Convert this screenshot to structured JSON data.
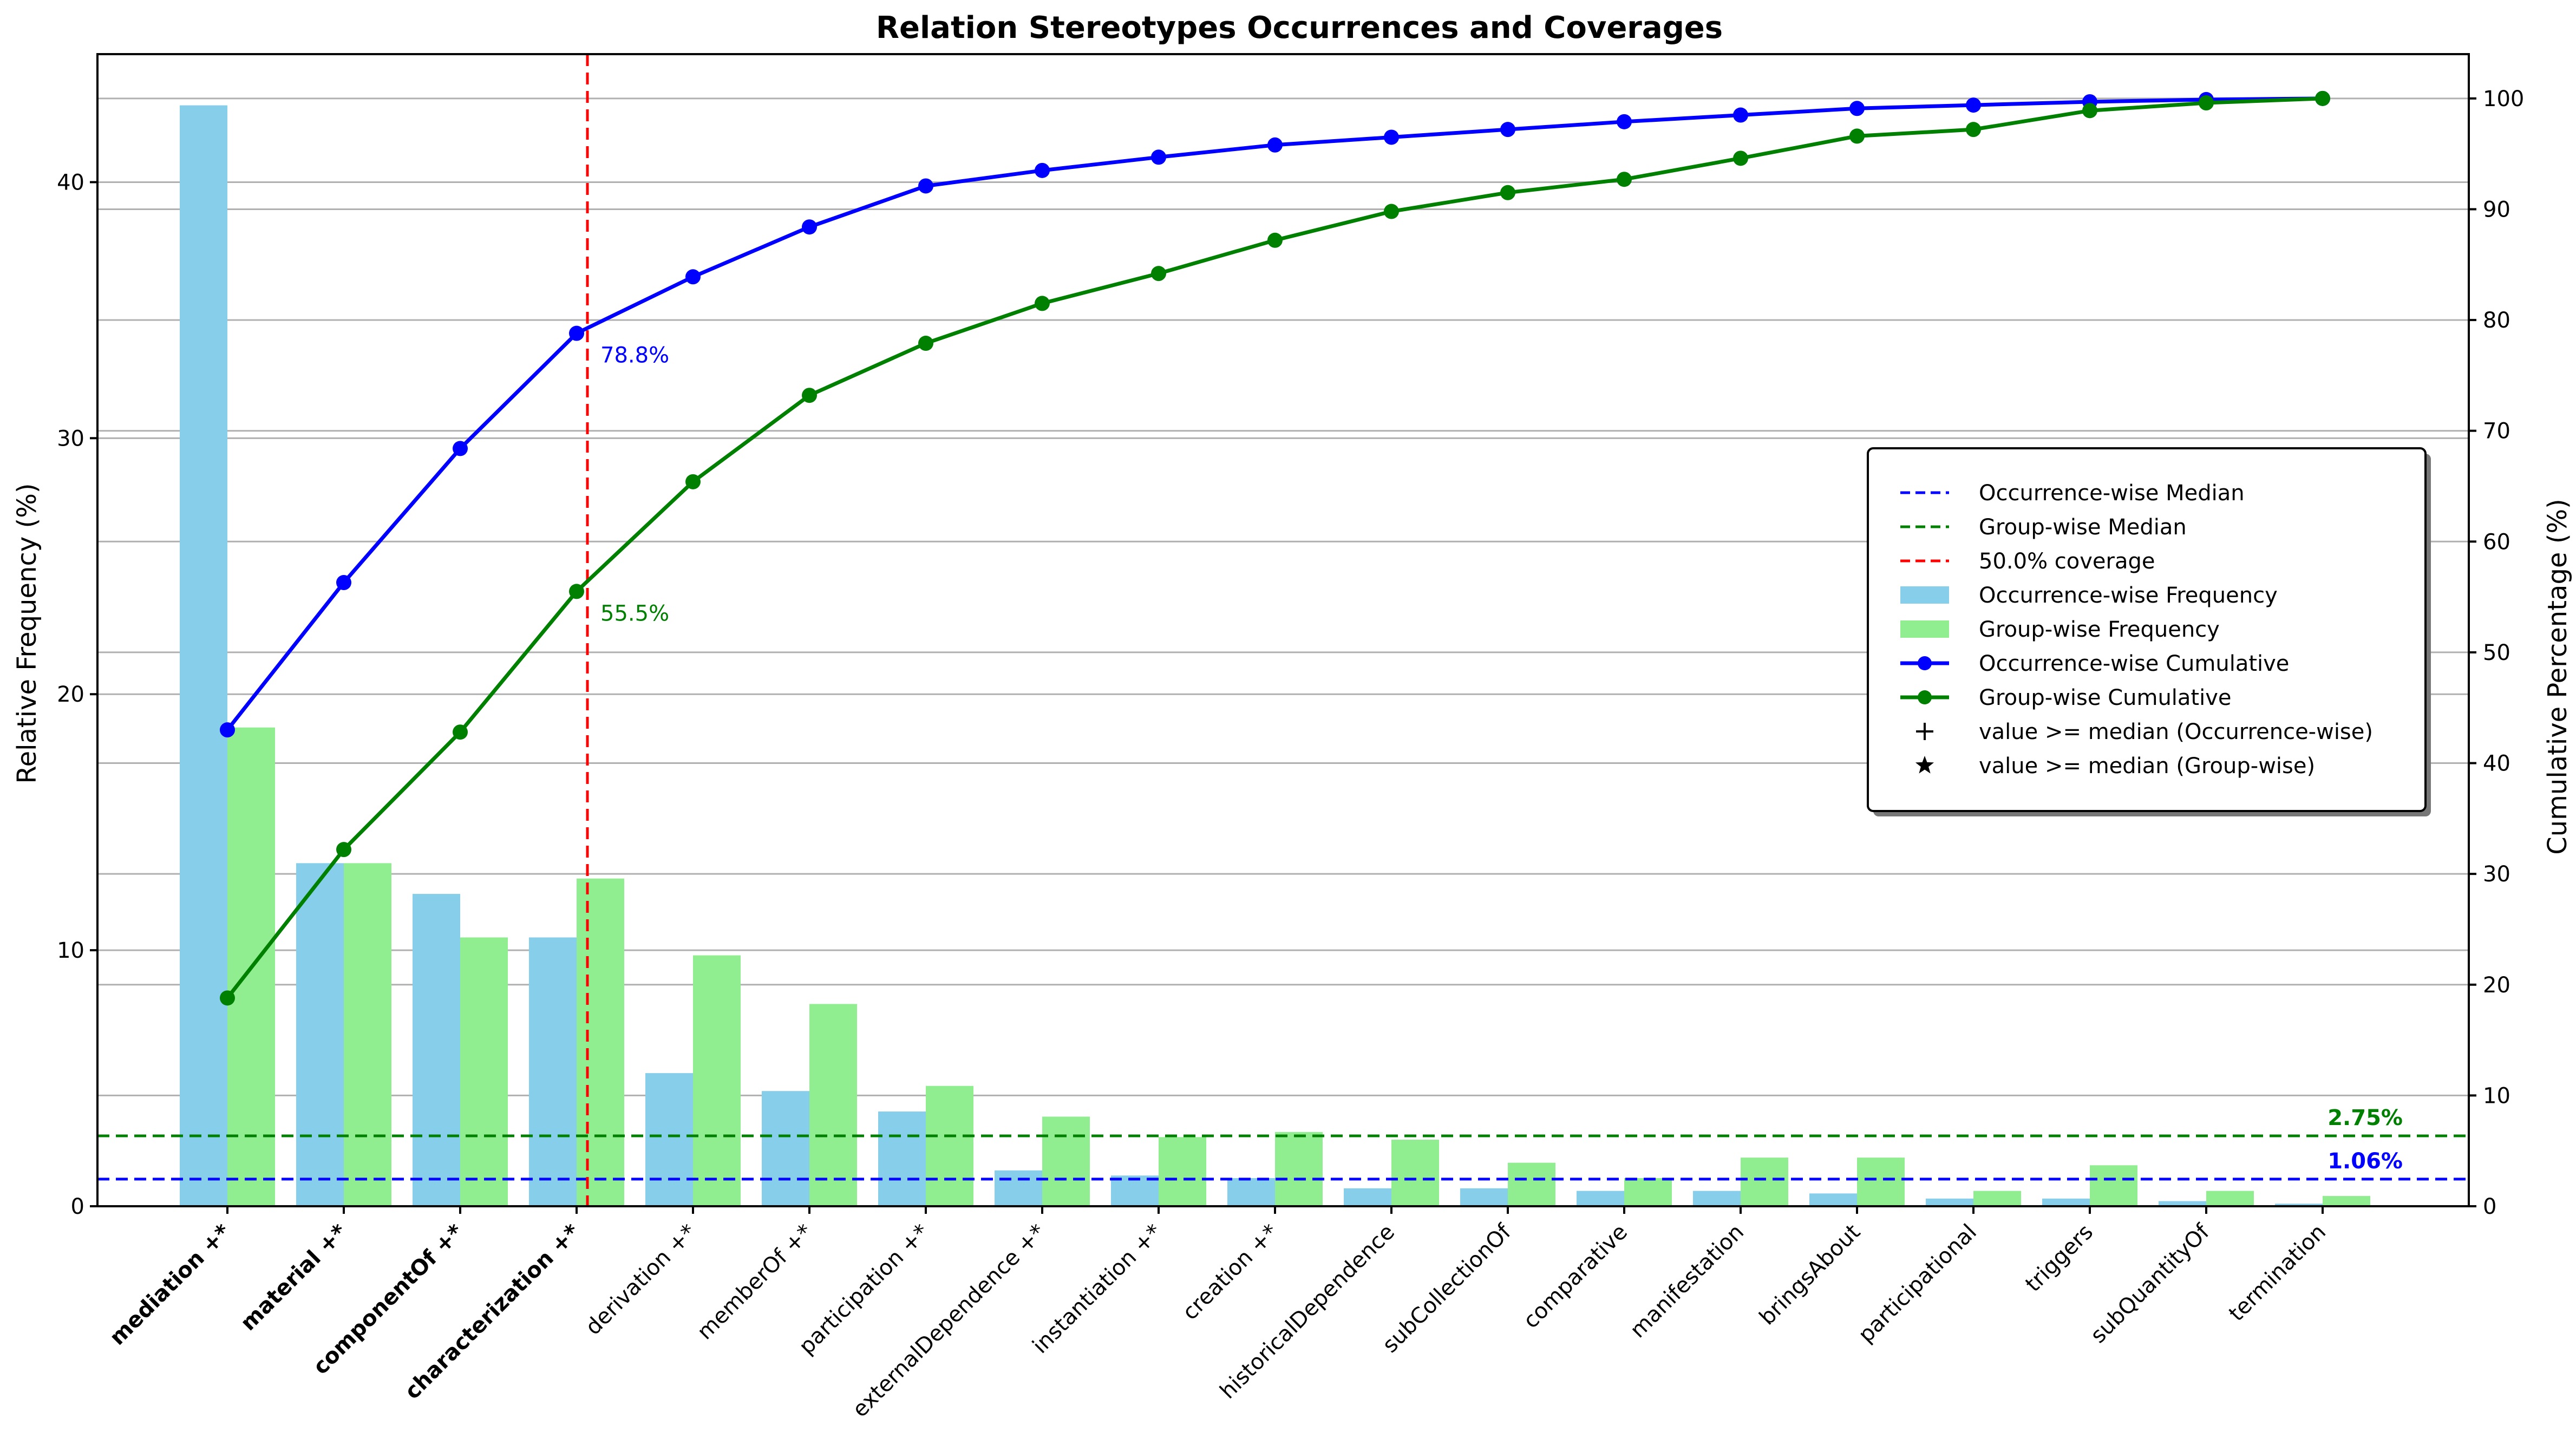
{
  "chart_data": {
    "type": "bar",
    "title": "Relation Stereotypes Occurrences and Coverages",
    "ylabel": "Relative Frequency (%)",
    "y2label": "Cumulative Percentage (%)",
    "ylim": [
      0,
      45
    ],
    "y2lim": [
      0,
      104
    ],
    "yticks": [
      0,
      10,
      20,
      30,
      40
    ],
    "y2ticks": [
      0,
      10,
      20,
      30,
      40,
      50,
      60,
      70,
      80,
      90,
      100
    ],
    "grid": "horizontal",
    "legend_position": "center-right",
    "categories": [
      "mediation +*",
      "material +*",
      "componentOf +*",
      "characterization +*",
      "derivation +*",
      "memberOf +*",
      "participation +*",
      "externalDependence +*",
      "instantiation +*",
      "creation +*",
      "historicalDependence",
      "subCollectionOf",
      "comparative",
      "manifestation",
      "bringsAbout",
      "participational",
      "triggers",
      "subQuantityOf",
      "termination"
    ],
    "bold_categories": [
      "mediation +*",
      "material +*",
      "componentOf +*",
      "characterization +*"
    ],
    "series": [
      {
        "name": "Occurrence-wise Frequency",
        "kind": "bar",
        "axis": "left",
        "color": "#87ceeb",
        "values": [
          43.0,
          13.4,
          12.2,
          10.5,
          5.2,
          4.5,
          3.7,
          1.4,
          1.2,
          1.1,
          0.7,
          0.7,
          0.6,
          0.6,
          0.5,
          0.3,
          0.3,
          0.2,
          0.1
        ]
      },
      {
        "name": "Group-wise Frequency",
        "kind": "bar",
        "axis": "left",
        "color": "#90ee90",
        "values": [
          18.7,
          13.4,
          10.5,
          12.8,
          9.8,
          7.9,
          4.7,
          3.5,
          2.7,
          2.9,
          2.6,
          1.7,
          1.1,
          1.9,
          1.9,
          0.6,
          1.6,
          0.6,
          0.4
        ]
      },
      {
        "name": "Occurrence-wise Cumulative",
        "kind": "line",
        "axis": "right",
        "color": "#0000ff",
        "values": [
          43.0,
          56.3,
          68.4,
          78.8,
          83.9,
          88.4,
          92.1,
          93.5,
          94.7,
          95.8,
          96.5,
          97.2,
          97.9,
          98.5,
          99.1,
          99.4,
          99.7,
          99.9,
          100.0
        ]
      },
      {
        "name": "Group-wise Cumulative",
        "kind": "line",
        "axis": "right",
        "color": "#008000",
        "values": [
          18.8,
          32.2,
          42.8,
          55.5,
          65.4,
          73.2,
          77.9,
          81.5,
          84.2,
          87.2,
          89.8,
          91.5,
          92.7,
          94.6,
          96.6,
          97.2,
          98.9,
          99.6,
          100.0
        ]
      }
    ],
    "reference_lines": [
      {
        "name": "Occurrence-wise Median",
        "orientation": "horizontal",
        "axis": "left",
        "value": 1.06,
        "color": "#0000ff",
        "label": "1.06%"
      },
      {
        "name": "Group-wise Median",
        "orientation": "horizontal",
        "axis": "left",
        "value": 2.75,
        "color": "#008000",
        "label": "2.75%"
      },
      {
        "name": "50.0% coverage",
        "orientation": "vertical",
        "category_index": 3,
        "color": "#ff0000"
      }
    ],
    "annotations": [
      {
        "text": "78.8%",
        "series": "Occurrence-wise Cumulative",
        "category_index": 3,
        "color": "#0000ff"
      },
      {
        "text": "55.5%",
        "series": "Group-wise Cumulative",
        "category_index": 3,
        "color": "#008000"
      }
    ],
    "legend": [
      {
        "label": "Occurrence-wise Median",
        "marker": "dashed-line",
        "color": "#0000ff"
      },
      {
        "label": "Group-wise Median",
        "marker": "dashed-line",
        "color": "#008000"
      },
      {
        "label": "50.0% coverage",
        "marker": "dashed-line",
        "color": "#ff0000"
      },
      {
        "label": "Occurrence-wise Frequency",
        "marker": "patch",
        "color": "#87ceeb"
      },
      {
        "label": "Group-wise Frequency",
        "marker": "patch",
        "color": "#90ee90"
      },
      {
        "label": "Occurrence-wise Cumulative",
        "marker": "line-dot",
        "color": "#0000ff"
      },
      {
        "label": "Group-wise Cumulative",
        "marker": "line-dot",
        "color": "#008000"
      },
      {
        "label": "value >= median (Occurrence-wise)",
        "marker": "plus",
        "color": "#000000"
      },
      {
        "label": "value >= median (Group-wise)",
        "marker": "star",
        "color": "#000000"
      }
    ]
  }
}
